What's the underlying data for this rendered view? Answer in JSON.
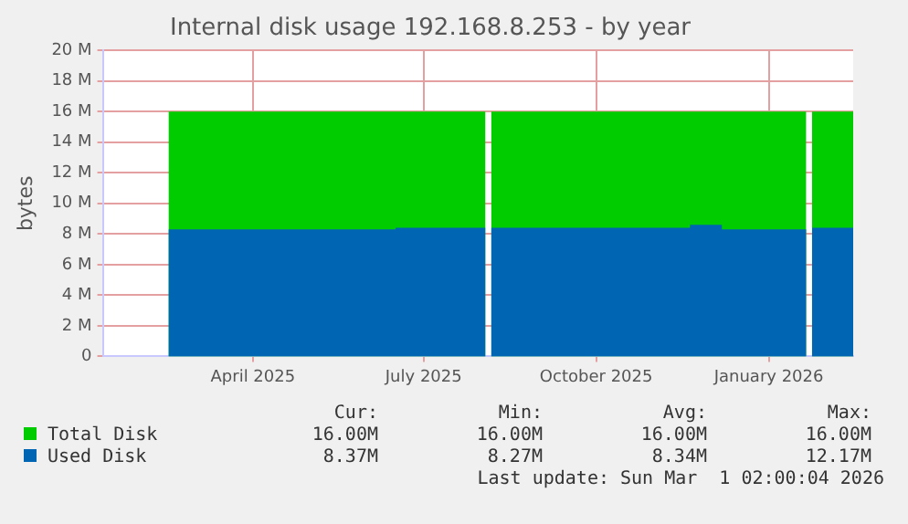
{
  "chart_data": {
    "type": "area",
    "title": "Internal disk usage 192.168.8.253 - by year",
    "ylabel": "bytes",
    "series": [
      {
        "name": "Total Disk",
        "color": "#00cc00",
        "x": [
          "2025-02-15",
          "2025-08-03",
          "2025-08-04",
          "2025-08-06",
          "2026-01-21",
          "2026-01-22",
          "2026-01-24",
          "2026-02-15"
        ],
        "values": [
          16,
          16,
          null,
          16,
          16,
          null,
          16,
          16
        ]
      },
      {
        "name": "Used Disk",
        "color": "#0066b3",
        "x": [
          "2025-02-15",
          "2025-06-16",
          "2025-08-03",
          "2025-08-04",
          "2025-08-06",
          "2025-11-20",
          "2025-12-07",
          "2026-01-21",
          "2026-01-22",
          "2026-01-24",
          "2026-02-15"
        ],
        "values": [
          8.3,
          8.4,
          8.4,
          null,
          8.4,
          8.6,
          8.3,
          8.3,
          null,
          8.4,
          8.4
        ]
      }
    ],
    "xlim": [
      "2025-01-11",
      "2026-02-15"
    ],
    "xticks": [
      {
        "value": "2025-04-01",
        "label": "April 2025"
      },
      {
        "value": "2025-07-01",
        "label": "July 2025"
      },
      {
        "value": "2025-10-01",
        "label": "October 2025"
      },
      {
        "value": "2026-01-01",
        "label": "January 2026"
      }
    ],
    "ylim": [
      0,
      20
    ],
    "yticks": [
      0,
      {
        "value": 2,
        "label": "2 M"
      },
      {
        "value": 4,
        "label": "4 M"
      },
      {
        "value": 6,
        "label": "6 M"
      },
      {
        "value": 8,
        "label": "8 M"
      },
      {
        "value": 10,
        "label": "10 M"
      },
      {
        "value": 12,
        "label": "12 M"
      },
      {
        "value": 14,
        "label": "14 M"
      },
      {
        "value": 16,
        "label": "16 M"
      },
      {
        "value": 18,
        "label": "18 M"
      },
      {
        "value": 20,
        "label": "20 M"
      }
    ],
    "grid": true,
    "legend": "bottom",
    "marker": "none",
    "annotations": [
      "Cur:",
      "Min:",
      "Avg:",
      "Max:",
      "16.00M",
      "16.00M",
      "16.00M",
      "16.00M",
      "8.37M",
      "8.27M",
      "8.34M",
      "12.17M",
      "Last update: Sun Mar  1 02:00:04 2026"
    ]
  }
}
